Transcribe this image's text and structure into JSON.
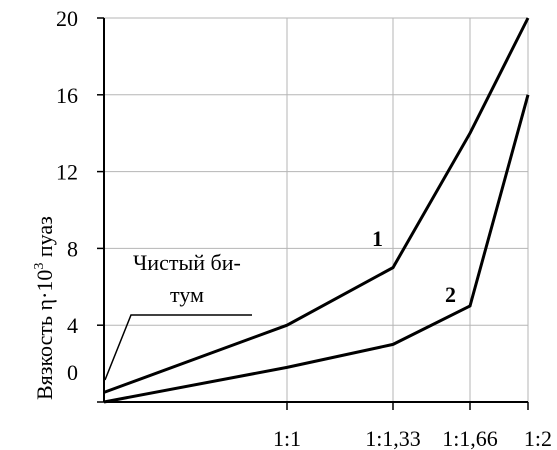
{
  "chart_data": {
    "type": "line",
    "title": "",
    "xlabel": "",
    "ylabel": {
      "prefix": "Вязкость η·10",
      "superscript": "3",
      "suffix": " пуаз"
    },
    "y_ticks": [
      "0",
      "4",
      "8",
      "12",
      "16",
      "20"
    ],
    "ylim": [
      0,
      20
    ],
    "x_ticks": [
      "1:1",
      "1:1,33",
      "1:1,66",
      "1:2"
    ],
    "grid": true,
    "series": [
      {
        "name": "1",
        "points": [
          {
            "x": "",
            "y": 0.5
          },
          {
            "x": "1:1",
            "y": 4
          },
          {
            "x": "1:1,33",
            "y": 7
          },
          {
            "x": "1:1,66",
            "y": 14
          },
          {
            "x": "1:2",
            "y": 20
          }
        ]
      },
      {
        "name": "2",
        "points": [
          {
            "x": "",
            "y": 0
          },
          {
            "x": "1:1",
            "y": 1.8
          },
          {
            "x": "1:1,33",
            "y": 3
          },
          {
            "x": "1:1,66",
            "y": 5
          },
          {
            "x": "1:2",
            "y": 16
          }
        ]
      }
    ],
    "annotation": {
      "lines": [
        "Чистый би-",
        "тум"
      ]
    }
  }
}
